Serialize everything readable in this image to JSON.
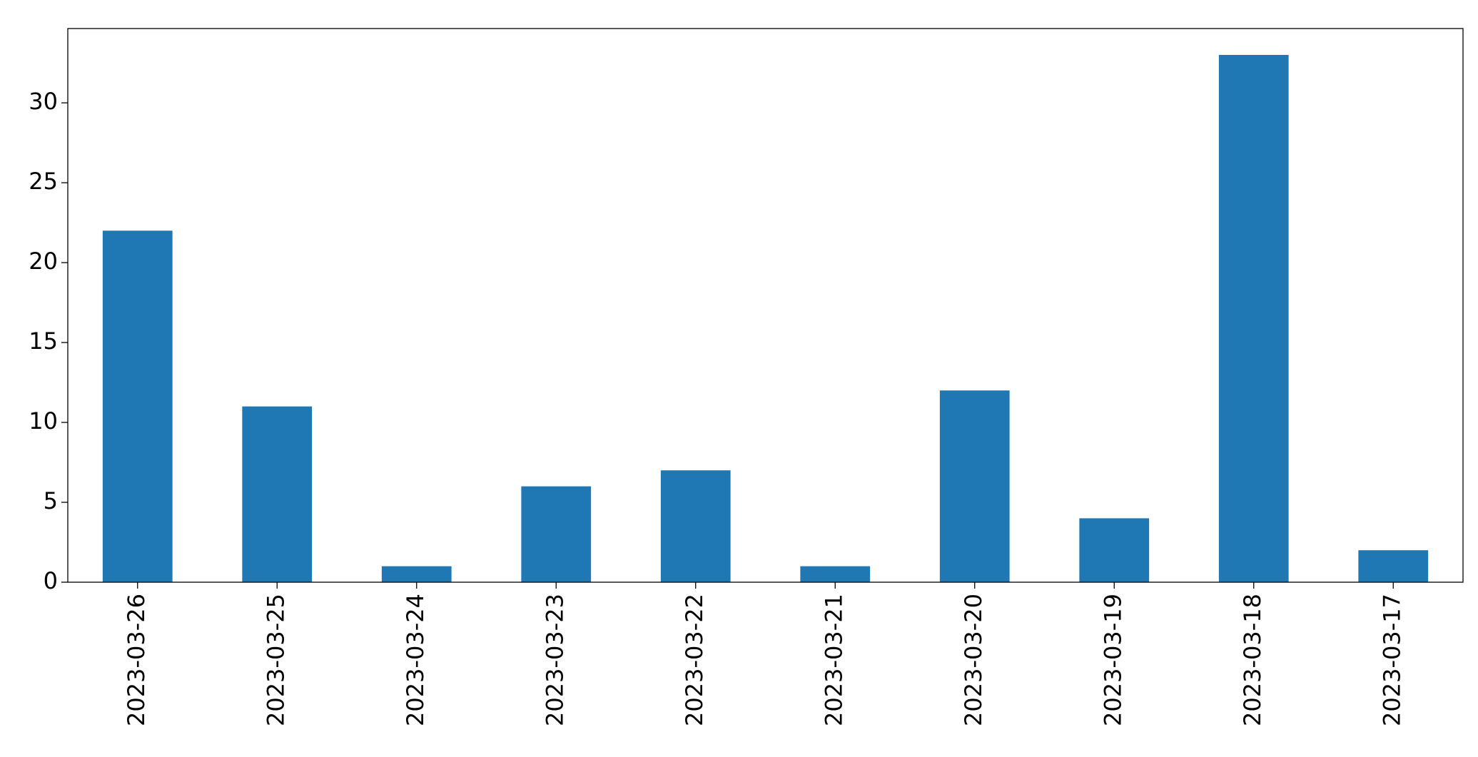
{
  "chart_data": {
    "type": "bar",
    "categories": [
      "2023-03-26",
      "2023-03-25",
      "2023-03-24",
      "2023-03-23",
      "2023-03-22",
      "2023-03-21",
      "2023-03-20",
      "2023-03-19",
      "2023-03-18",
      "2023-03-17"
    ],
    "values": [
      22,
      11,
      1,
      6,
      7,
      1,
      12,
      4,
      33,
      2
    ],
    "color": "#1f77b4",
    "ylim": [
      0,
      34.65
    ],
    "yticks": [
      0,
      5,
      10,
      15,
      20,
      25,
      30
    ],
    "grid": false
  }
}
